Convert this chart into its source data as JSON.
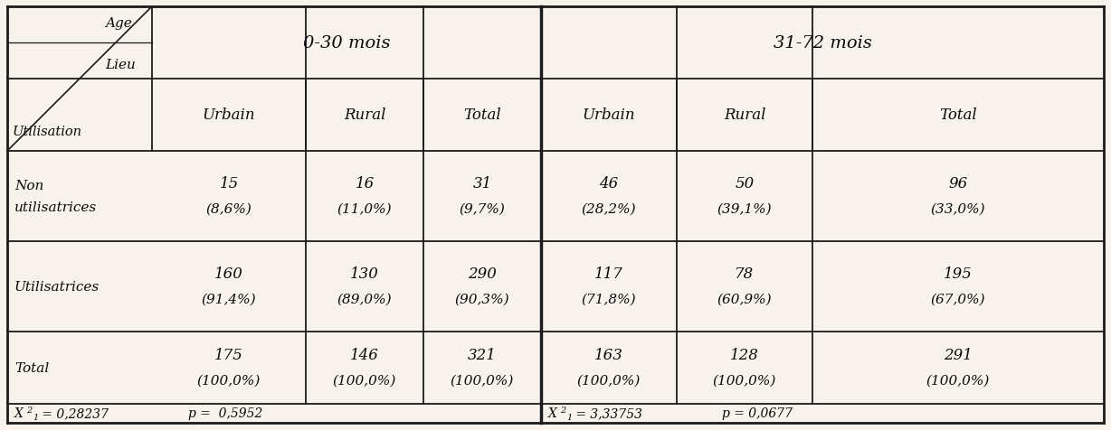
{
  "age_groups": [
    "0-30 mois",
    "31-72 mois"
  ],
  "sub_headers": [
    "Urbain",
    "Rural",
    "Total",
    "Urbain",
    "Rural",
    "Total"
  ],
  "row_labels": [
    "Non\nutilisatrices",
    "Utilisatrices",
    "Total"
  ],
  "data": [
    [
      "15",
      "(8,6%)",
      "16",
      "(11,0%)",
      "31",
      "(9,7%)",
      "46",
      "(28,2%)",
      "50",
      "(39,1%)",
      "96",
      "(33,0%)"
    ],
    [
      "160",
      "(91,4%)",
      "130",
      "(89,0%)",
      "290",
      "(90,3%)",
      "117",
      "(71,8%)",
      "78",
      "(60,9%)",
      "195",
      "(67,0%)"
    ],
    [
      "175",
      "(100,0%)",
      "146",
      "(100,0%)",
      "321",
      "(100,0%)",
      "163",
      "(100,0%)",
      "128",
      "(100,0%)",
      "291",
      "(100,0%)"
    ]
  ],
  "stats_left_chi": "X",
  "stats_left_body": "1 = 0,28237",
  "stats_left_p": "p =  0,5952",
  "stats_right_chi": "X",
  "stats_right_body": "1 = 3,33753",
  "stats_right_p": "p = 0,0677",
  "bg_color": "#f7f3ec",
  "line_color": "#1a1a1a",
  "font_color": "#0a0a0a"
}
